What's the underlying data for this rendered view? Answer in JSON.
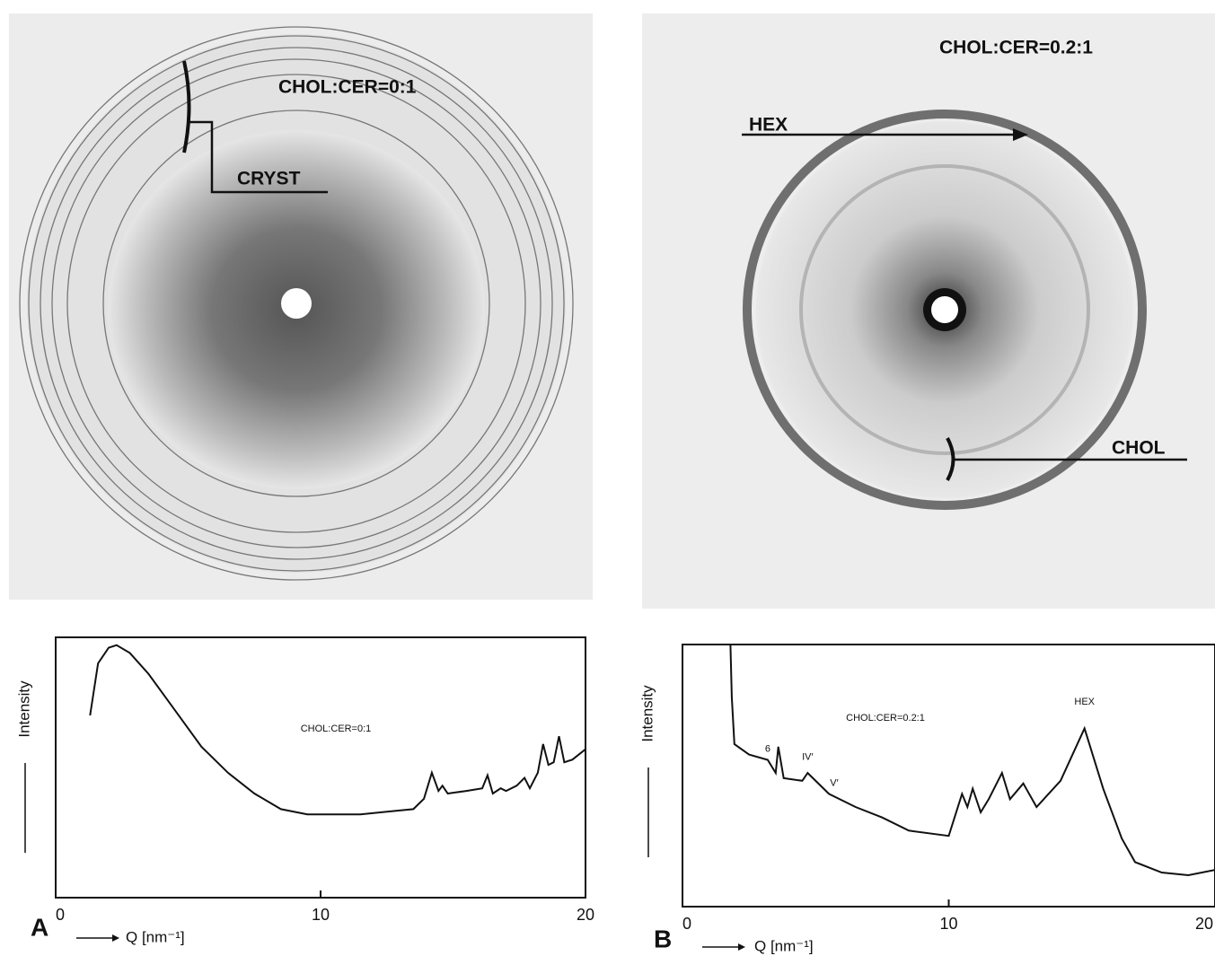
{
  "panels": [
    {
      "letter": "A",
      "image": {
        "label": "CHOL:CER=0:1",
        "annotations": [
          "CRYST"
        ]
      }
    },
    {
      "letter": "B",
      "image": {
        "label": "CHOL:CER=0.2:1",
        "annotations": [
          "HEX",
          "CHOL"
        ]
      }
    }
  ],
  "chart_data": [
    {
      "type": "line",
      "title": "CHOL:CER=0:1",
      "x_label": "Q [nm⁻¹]",
      "y_label": "Intensity",
      "color": "#111111",
      "xlim": [
        0,
        20
      ],
      "xticks": [
        0,
        10,
        20
      ],
      "ylim": [
        0,
        100
      ],
      "x": [
        1.3,
        1.6,
        2.0,
        2.3,
        2.8,
        3.5,
        4.5,
        5.5,
        6.5,
        7.5,
        8.5,
        9.5,
        10.5,
        11.5,
        12.5,
        13.5,
        13.9,
        14.2,
        14.45,
        14.6,
        14.8,
        15.5,
        16.1,
        16.3,
        16.5,
        16.8,
        17.0,
        17.4,
        17.7,
        17.9,
        18.2,
        18.4,
        18.6,
        18.8,
        19.0,
        19.2,
        19.5,
        20
      ],
      "values": [
        70,
        90,
        96,
        97,
        94,
        86,
        72,
        58,
        48,
        40,
        34,
        32,
        32,
        32,
        33,
        34,
        38,
        48,
        41,
        43,
        40,
        41,
        42,
        47,
        40,
        42,
        41,
        43,
        46,
        42,
        48,
        59,
        51,
        52,
        62,
        52,
        53,
        57
      ],
      "annotations": []
    },
    {
      "type": "line",
      "title": "CHOL:CER=0.2:1",
      "x_label": "Q [nm⁻¹]",
      "y_label": "Intensity",
      "color": "#111111",
      "xlim": [
        0,
        20
      ],
      "xticks": [
        0,
        10,
        20
      ],
      "ylim": [
        0,
        100
      ],
      "x": [
        1.8,
        1.85,
        1.95,
        2.5,
        3.2,
        3.5,
        3.6,
        3.8,
        4.5,
        4.7,
        5.5,
        6.5,
        7.5,
        8.5,
        10,
        10.5,
        10.7,
        10.9,
        11.2,
        11.5,
        12,
        12.3,
        12.8,
        13.3,
        14.2,
        15.1,
        15.8,
        16.5,
        17.0,
        18,
        19,
        20
      ],
      "values": [
        100,
        80,
        62,
        58,
        56,
        51,
        61,
        49,
        48,
        51,
        43,
        38,
        34,
        29,
        27,
        43,
        38,
        45,
        36,
        41,
        51,
        41,
        47,
        38,
        48,
        68,
        45,
        26,
        17,
        13,
        12,
        14
      ],
      "annotations": [
        "6",
        "IV′",
        "V′",
        "HEX"
      ]
    }
  ]
}
